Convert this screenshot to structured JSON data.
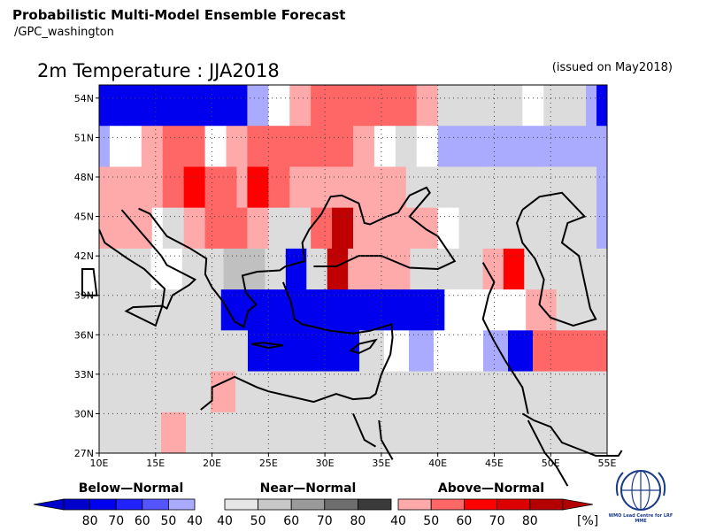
{
  "header": {
    "title": "Probabilistic Multi-Model Ensemble Forecast",
    "subtitle": "/GPC_washington",
    "variable_title": "2m Temperature : JJA2018",
    "issued": "(issued on May2018)"
  },
  "map": {
    "lon_labels": [
      "10E",
      "15E",
      "20E",
      "25E",
      "30E",
      "35E",
      "40E",
      "45E",
      "50E",
      "55E"
    ],
    "lat_labels": [
      "54N",
      "51N",
      "48N",
      "45N",
      "42N",
      "39N",
      "36N",
      "33N",
      "30N",
      "27N"
    ],
    "lon_range": [
      10,
      55
    ],
    "lat_range": [
      27,
      55
    ],
    "rows": [
      "BBBBBBBBBBBBBBbbWWrrRRRRRRRRRRrrnnnnnnnnWWnnnnbB",
      "bWWWrrRRRRWWrrRRRRRRRRRRrrWWnnWWbbbbbbbbbbbbbbbb",
      "rrrrrrRRAARRRrAARRrrrrrrrrrrrnnnnnnnnnnnnnnnnnnb",
      "rrrrrWnnrrRRRRrrnnnnRRDDrrrrrrrrWWnnnnnnnnnnnnnb",
      "nnnnnWWWnnnnNNNNnnBBnnDDrrrrrrnnnnnnnrrAAnnnnnnnn",
      "nnnnnnnnnnnnBBBBBBBBBBBBBBBBBBBBBBWWWWWWWWrrrnnnnn",
      "nnnnnnnnnnnnBBBBBBBBBnnWWbbWWWWbbBBRRRRRR",
      "nnnnnnnnnrrnnnnnnnnnnnnnnnnnnnnnnnnnnnnnn",
      "nnnnnrrnnnnnnnnnnnnnnnnnnnnnnnnnnnnnnnnnn"
    ],
    "legend": {
      "below_normal": {
        "title": "Below—Normal",
        "ticks": [
          "80",
          "70",
          "60",
          "50",
          "40"
        ],
        "colors": [
          "#0000cc",
          "#0000ee",
          "#2222ff",
          "#5555ff",
          "#aaaaff"
        ]
      },
      "near_normal": {
        "title": "Near—Normal",
        "ticks": [
          "40",
          "50",
          "60",
          "70",
          "80"
        ],
        "colors": [
          "#e6e6e6",
          "#c8c8c8",
          "#9a9a9a",
          "#6e6e6e",
          "#3a3a3a"
        ]
      },
      "above_normal": {
        "title": "Above—Normal",
        "ticks": [
          "40",
          "50",
          "60",
          "70",
          "80"
        ],
        "unit": "[%]",
        "colors": [
          "#ffaaaa",
          "#ff6666",
          "#ff0000",
          "#dd0000",
          "#b40000"
        ]
      }
    },
    "colors": {
      "W": "#ffffff",
      "n": "#dcdcdc",
      "N": "#c0c0c0",
      "b": "#aaaaff",
      "B": "#0000ee",
      "r": "#ffaaaa",
      "R": "#ff6666",
      "A": "#ff0000",
      "D": "#c00000"
    },
    "logo_text": "WMO Lead Centre for LRF MME"
  }
}
